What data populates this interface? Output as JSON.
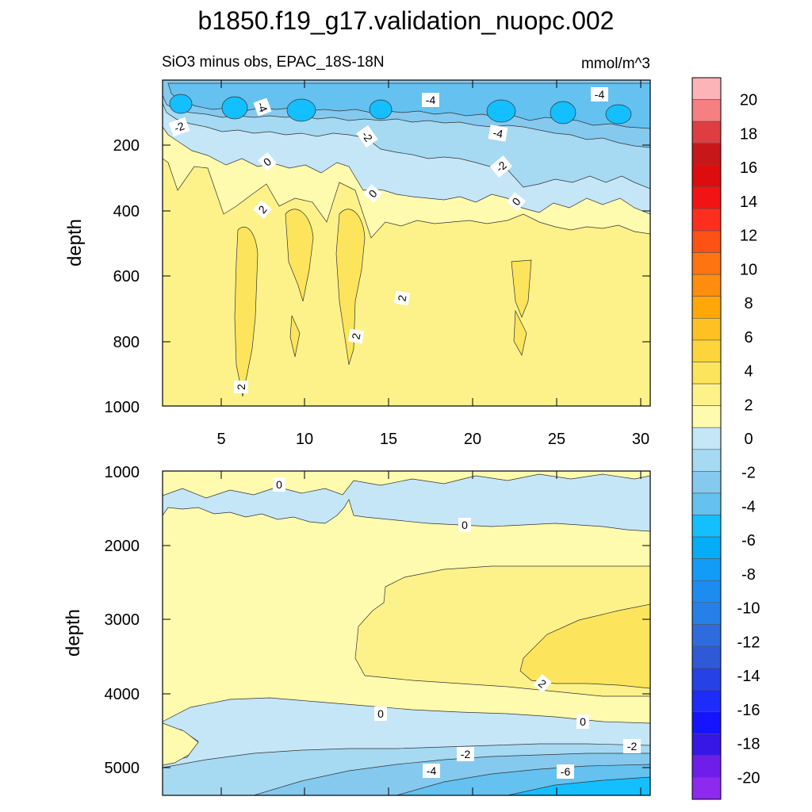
{
  "chart_data": {
    "type": "contour",
    "title": "b1850.f19_g17.validation_nuopc.002",
    "subtitle_left": "SiO3 minus obs, EPAC_18S-18N",
    "subtitle_right": "mmol/m^3",
    "colorbar": {
      "levels": [
        20,
        18,
        16,
        14,
        12,
        10,
        8,
        6,
        4,
        2,
        0,
        -2,
        -4,
        -6,
        -8,
        -10,
        -12,
        -14,
        -16,
        -18,
        -20
      ],
      "colors": [
        "#fdb4b8",
        "#f57f81",
        "#de3e42",
        "#c81719",
        "#dd0c0e",
        "#f21415",
        "#fe2e1e",
        "#fe5115",
        "#fe7411",
        "#ff8d0e",
        "#ffa709",
        "#fec124",
        "#fdd43b",
        "#fce55c",
        "#fdf28a",
        "#fefaae",
        "#c4e6f7",
        "#a6d9f2",
        "#85c9ef",
        "#64c1f0",
        "#14bfff",
        "#05acf7",
        "#139bf8",
        "#1d8cf0",
        "#2680e8",
        "#2e6cde",
        "#2e5ad8",
        "#2641e6",
        "#1d2cf8",
        "#1414ff",
        "#3617e6",
        "#6f1de9",
        "#8e2aef"
      ]
    },
    "panels": [
      {
        "name": "upper",
        "ylabel": "depth",
        "xlabel": "",
        "xlim": [
          1.5,
          30.5
        ],
        "ylim": [
          1000,
          0
        ],
        "xticks": [
          "5",
          "10",
          "15",
          "20",
          "25",
          "30"
        ],
        "yticks": [
          "200",
          "400",
          "600",
          "800",
          "1000"
        ],
        "contour_labels": [
          "-4",
          "-4",
          "-4",
          "-4",
          "-2",
          "-2",
          "-2",
          "0",
          "0",
          "0",
          "2",
          "2",
          "2",
          "2"
        ]
      },
      {
        "name": "lower",
        "ylabel": "depth",
        "xlabel": "",
        "xlim": [
          1.5,
          30.5
        ],
        "ylim": [
          5350,
          1000
        ],
        "yticks": [
          "1000",
          "2000",
          "3000",
          "4000",
          "5000"
        ],
        "contour_labels": [
          "0",
          "0",
          "2",
          "0",
          "0",
          "-2",
          "-2",
          "-4",
          "-6"
        ]
      }
    ]
  }
}
